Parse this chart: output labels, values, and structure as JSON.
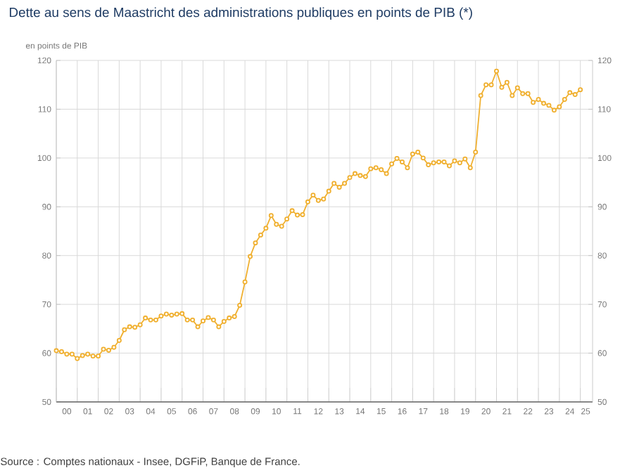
{
  "chart_data": {
    "type": "line",
    "title": "Dette au sens de Maastricht des administrations publiques en points de PIB (*)",
    "ylabel": "en points de PIB",
    "annotations": [
      "Source : Comptes nationaux - Insee, DGFiP, Banque de France."
    ],
    "x": [
      "2000-01",
      "2000-04",
      "2000-07",
      "2000-10",
      "2001-01",
      "2001-04",
      "2001-07",
      "2001-10",
      "2002-01",
      "2002-04",
      "2002-07",
      "2002-10",
      "2003-01",
      "2003-04",
      "2003-07",
      "2003-10",
      "2004-01",
      "2004-04",
      "2004-07",
      "2004-10",
      "2005-01",
      "2005-04",
      "2005-07",
      "2005-10",
      "2006-01",
      "2006-04",
      "2006-07",
      "2006-10",
      "2007-01",
      "2007-04",
      "2007-07",
      "2007-10",
      "2008-01",
      "2008-04",
      "2008-07",
      "2008-10",
      "2009-01",
      "2009-04",
      "2009-07",
      "2009-10",
      "2010-01",
      "2010-04",
      "2010-07",
      "2010-10",
      "2011-01",
      "2011-04",
      "2011-07",
      "2011-10",
      "2012-01",
      "2012-04",
      "2012-07",
      "2012-10",
      "2013-01",
      "2013-04",
      "2013-07",
      "2013-10",
      "2014-01",
      "2014-04",
      "2014-07",
      "2014-10",
      "2015-01",
      "2015-04",
      "2015-07",
      "2015-10",
      "2016-01",
      "2016-04",
      "2016-07",
      "2016-10",
      "2017-01",
      "2017-04",
      "2017-07",
      "2017-10",
      "2018-01",
      "2018-04",
      "2018-07",
      "2018-10",
      "2019-01",
      "2019-04",
      "2019-07",
      "2019-10",
      "2020-01",
      "2020-04",
      "2020-07",
      "2020-10",
      "2021-01",
      "2021-04",
      "2021-07",
      "2021-10",
      "2022-01",
      "2022-04",
      "2022-07",
      "2022-10",
      "2023-01",
      "2023-04",
      "2023-07",
      "2023-10",
      "2024-01",
      "2024-04",
      "2024-07",
      "2024-10",
      "2025-01"
    ],
    "series": [
      {
        "color": "#f0b030",
        "values": [
          60.5,
          60.3,
          59.8,
          59.8,
          58.9,
          59.5,
          59.8,
          59.4,
          59.4,
          60.8,
          60.6,
          61.2,
          62.6,
          64.8,
          65.4,
          65.3,
          65.8,
          67.2,
          66.8,
          66.8,
          67.6,
          68.0,
          67.8,
          68.0,
          68.1,
          66.8,
          66.8,
          65.4,
          66.6,
          67.3,
          66.8,
          65.4,
          66.5,
          67.2,
          67.5,
          69.8,
          74.6,
          79.8,
          82.6,
          84.2,
          85.6,
          88.2,
          86.4,
          86.0,
          87.5,
          89.2,
          88.3,
          88.4,
          91.0,
          92.4,
          91.3,
          91.6,
          93.2,
          94.8,
          94.0,
          94.8,
          96.0,
          96.8,
          96.4,
          96.2,
          97.8,
          98.0,
          97.6,
          96.8,
          98.8,
          99.9,
          99.2,
          98.0,
          100.8,
          101.2,
          100.0,
          98.6,
          99.0,
          99.2,
          99.2,
          98.4,
          99.4,
          99.0,
          99.8,
          98.0,
          101.2,
          112.8,
          115.0,
          115.0,
          117.8,
          114.5,
          115.5,
          112.8,
          114.4,
          113.2,
          113.2,
          111.4,
          112.0,
          111.2,
          110.8,
          109.8,
          110.5,
          112.0,
          113.4,
          113.0,
          114.0
        ]
      }
    ],
    "xlim": [
      "2000-01",
      "2025-08"
    ],
    "xticks": [
      {
        "value": "2000",
        "label": null
      },
      {
        "value": "2001",
        "label": null
      },
      {
        "value": "2002",
        "label": null
      },
      {
        "value": "2003",
        "label": null
      },
      {
        "value": "2004",
        "label": null
      },
      {
        "value": "2005",
        "label": null
      },
      {
        "value": "2006",
        "label": null
      },
      {
        "value": "2007",
        "label": null
      },
      {
        "value": "2008",
        "label": null
      },
      {
        "value": "2009",
        "label": null
      },
      {
        "value": "2010",
        "label": null
      },
      {
        "value": "2011",
        "label": null
      },
      {
        "value": "2012",
        "label": null
      },
      {
        "value": "2013",
        "label": null
      },
      {
        "value": "2014",
        "label": null
      },
      {
        "value": "2015",
        "label": null
      },
      {
        "value": "2016",
        "label": null
      },
      {
        "value": "2017",
        "label": null
      },
      {
        "value": "2018",
        "label": null
      },
      {
        "value": "2019",
        "label": null
      },
      {
        "value": "2020",
        "label": null
      },
      {
        "value": "2021",
        "label": null
      },
      {
        "value": "2022",
        "label": null
      },
      {
        "value": "2023",
        "label": null
      },
      {
        "value": "2024",
        "label": null
      },
      {
        "value": "2025",
        "label": null
      },
      {
        "value": "2000-07",
        "label": "00"
      },
      {
        "value": "2001-07",
        "label": "01"
      },
      {
        "value": "2002-07",
        "label": "02"
      },
      {
        "value": "2003-07",
        "label": "03"
      },
      {
        "value": "2004-07",
        "label": "04"
      },
      {
        "value": "2005-07",
        "label": "05"
      },
      {
        "value": "2006-07",
        "label": "06"
      },
      {
        "value": "2007-07",
        "label": "07"
      },
      {
        "value": "2008-07",
        "label": "08"
      },
      {
        "value": "2009-07",
        "label": "09"
      },
      {
        "value": "2010-07",
        "label": "10"
      },
      {
        "value": "2011-07",
        "label": "11"
      },
      {
        "value": "2012-07",
        "label": "12"
      },
      {
        "value": "2013-07",
        "label": "13"
      },
      {
        "value": "2014-07",
        "label": "14"
      },
      {
        "value": "2015-07",
        "label": "15"
      },
      {
        "value": "2016-07",
        "label": "16"
      },
      {
        "value": "2017-07",
        "label": "17"
      },
      {
        "value": "2018-07",
        "label": "18"
      },
      {
        "value": "2019-07",
        "label": "19"
      },
      {
        "value": "2020-07",
        "label": "20"
      },
      {
        "value": "2021-07",
        "label": "21"
      },
      {
        "value": "2022-07",
        "label": "22"
      },
      {
        "value": "2023-07",
        "label": "23"
      },
      {
        "value": "2024-07",
        "label": "24"
      },
      {
        "value": "2025-04",
        "label": "25"
      }
    ],
    "ylim": [
      50,
      120
    ],
    "yticks": [
      50,
      60,
      70,
      80,
      90,
      100,
      110,
      120
    ],
    "y2lim": [
      50,
      120
    ],
    "y2ticks": [
      50,
      60,
      70,
      80,
      90,
      100,
      110,
      120
    ],
    "grid": true,
    "marker": "circle",
    "line_style": "solid"
  }
}
